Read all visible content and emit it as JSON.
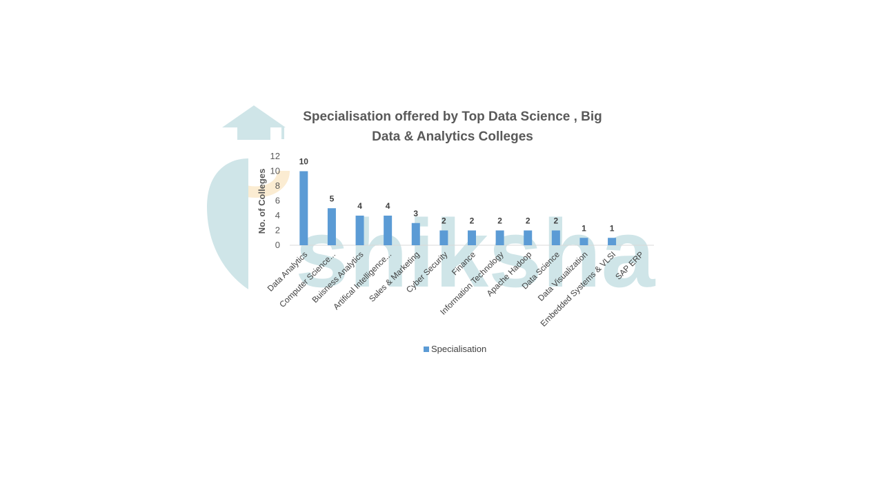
{
  "watermark": {
    "text": "shiksha",
    "color": "#cfe5e8",
    "accent": "#fbecd2"
  },
  "chart_data": {
    "type": "bar",
    "title": "Specialisation offered by Top Data Science , Big Data & Analytics Colleges",
    "title_lines": [
      "Specialisation offered by Top Data Science , Big",
      "Data & Analytics Colleges"
    ],
    "xlabel": "",
    "ylabel": "No. of Colleges",
    "ylim": [
      0,
      12
    ],
    "y_ticks": [
      0,
      2,
      4,
      6,
      8,
      10,
      12
    ],
    "categories": [
      "Data Analytics",
      "Computer Science...",
      "Buisness Analytics",
      "Artifical Intelligence...",
      "Sales & Marketing",
      "Cyber Security",
      "Finance",
      "Information Technology",
      "Apache Hadoop",
      "Data Science",
      "Data Visualization",
      "Embedded Systems & VLSI",
      "SAP ERP"
    ],
    "series": [
      {
        "name": "Specialisation",
        "values": [
          10,
          5,
          4,
          4,
          3,
          2,
          2,
          2,
          2,
          2,
          1,
          1,
          null
        ],
        "color": "#5b9bd5"
      }
    ],
    "data_labels": [
      "10",
      "5",
      "4",
      "4",
      "3",
      "2",
      "2",
      "2",
      "2",
      "2",
      "1",
      "1"
    ],
    "grid": false,
    "legend": "bottom"
  }
}
